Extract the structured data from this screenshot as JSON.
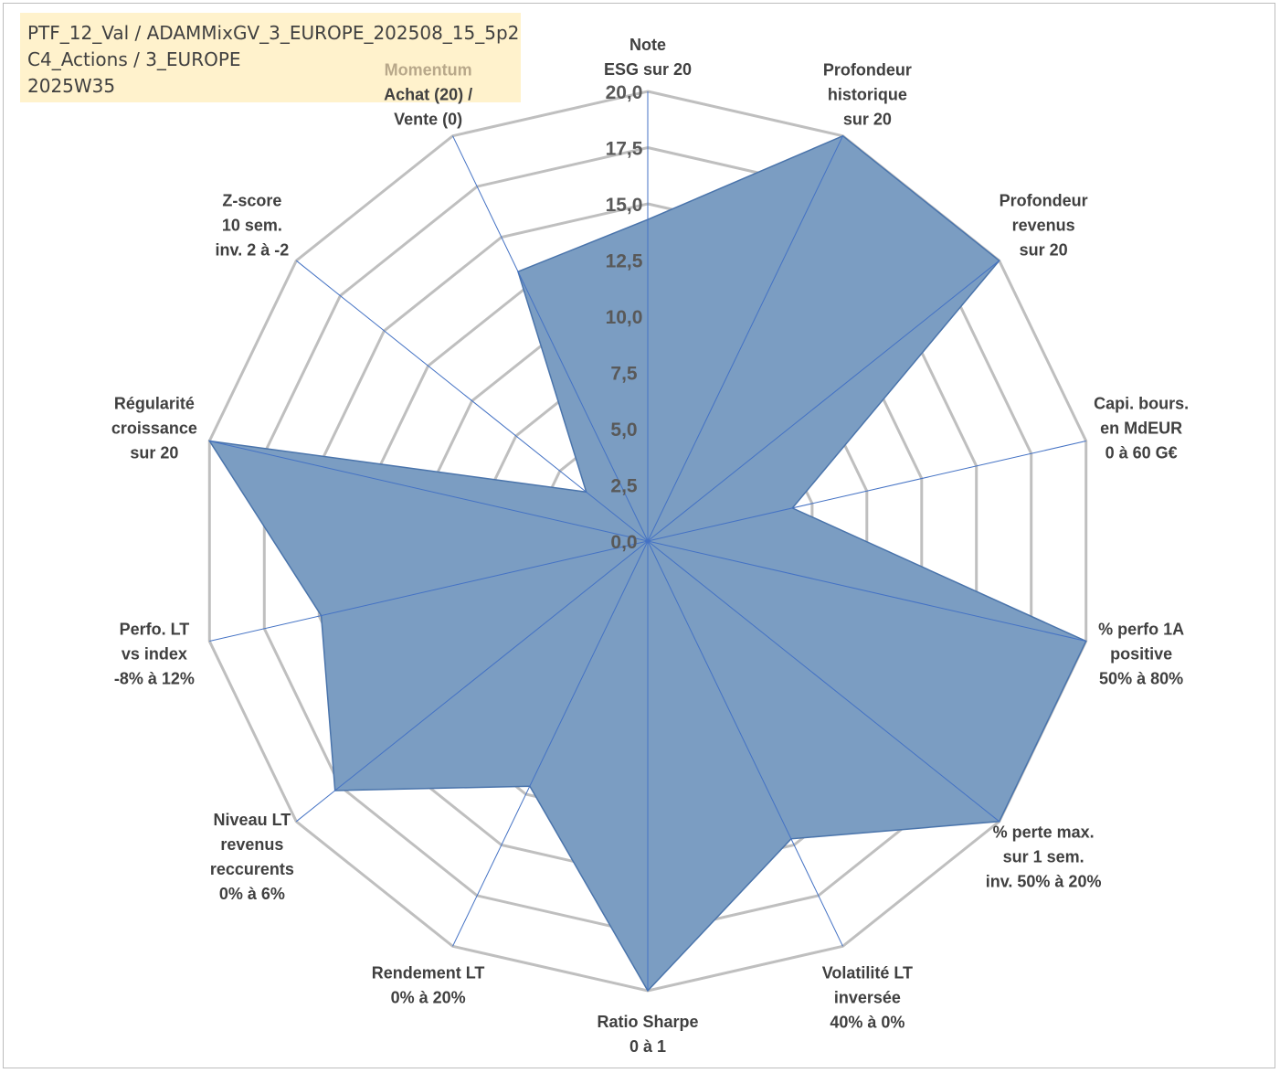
{
  "info": {
    "line1": "PTF_12_Val / ADAMMixGV_3_EUROPE_202508_15_5p2",
    "line2": "C4_Actions / 3_EUROPE",
    "line3": "2025W35"
  },
  "chart_data": {
    "type": "radar",
    "rmin": 0,
    "rmax": 20,
    "ticks": [
      "0,0",
      "2,5",
      "5,0",
      "7,5",
      "10,0",
      "12,5",
      "15,0",
      "17,5",
      "20,0"
    ],
    "tick_values": [
      0,
      2.5,
      5,
      7.5,
      10,
      12.5,
      15,
      17.5,
      20
    ],
    "axes": [
      {
        "lines": [
          "Note",
          "ESG sur 20"
        ]
      },
      {
        "lines": [
          "Profondeur",
          "historique",
          "sur 20"
        ]
      },
      {
        "lines": [
          "Profondeur",
          "revenus",
          "sur 20"
        ]
      },
      {
        "lines": [
          "Capi. bours.",
          "en MdEUR",
          "0 à 60 G€"
        ]
      },
      {
        "lines": [
          "% perfo 1A",
          "positive",
          "50% à 80%"
        ]
      },
      {
        "lines": [
          "% perte max.",
          "sur 1 sem.",
          "inv. 50% à 20%"
        ]
      },
      {
        "lines": [
          "Volatilité LT",
          "inversée",
          "40% à 0%"
        ]
      },
      {
        "lines": [
          "Ratio Sharpe",
          "0 à 1"
        ]
      },
      {
        "lines": [
          "Rendement LT",
          "0% à 20%"
        ]
      },
      {
        "lines": [
          "Niveau LT",
          "revenus",
          "reccurents",
          "0% à 6%"
        ]
      },
      {
        "lines": [
          "Perfo. LT",
          "vs index",
          "-8% à 12%"
        ]
      },
      {
        "lines": [
          "Régularité",
          "croissance",
          "sur 20"
        ]
      },
      {
        "lines": [
          "Z-score",
          "10 sem.",
          "inv. 2 à -2"
        ]
      },
      {
        "lines": [
          "Momentum",
          "Achat (20) /",
          "Vente (0)"
        ],
        "highlight_first": true
      }
    ],
    "values": [
      14.3,
      20,
      20,
      6.6,
      20,
      20,
      14.7,
      20,
      12.1,
      17.8,
      14.9,
      20,
      3.5,
      13.3
    ],
    "series_color": "#4a74ab",
    "fill_color": "#7b9dc2",
    "grid_color": "#bfbfbf",
    "spoke_color": "#4472c4",
    "grid": true
  }
}
